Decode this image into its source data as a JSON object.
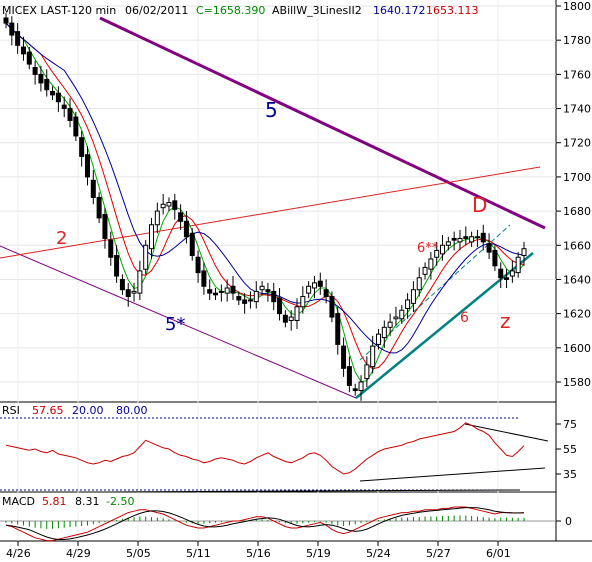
{
  "header": {
    "symbol": "MICEX LAST-120 min",
    "date": "06/02/2011",
    "close": "C=1658.390",
    "indicator": "ABillW_3LinesII2",
    "v1": "1640.172",
    "v2": "1653.113"
  },
  "rsi_header": {
    "name": "RSI",
    "value": "57.65",
    "low": "20.00",
    "high": "80.00"
  },
  "macd_header": {
    "name": "MACD",
    "v1": "5.81",
    "v2": "8.31",
    "v3": "-2.50"
  },
  "annotations": {
    "wave5": "5",
    "wave5star": "5*",
    "wave2": "2",
    "pointD": "D",
    "wave6dbl": "6**",
    "wave6": "6",
    "pointZ": "z"
  },
  "chart_data": {
    "type": "candlestick",
    "price_axis": {
      "ticks": [
        1580,
        1600,
        1620,
        1640,
        1660,
        1680,
        1700,
        1720,
        1740,
        1760,
        1780,
        1800
      ],
      "ylim": [
        1562,
        1805
      ]
    },
    "rsi_axis": {
      "ticks": [
        35,
        55,
        75
      ]
    },
    "macd_axis": {
      "ticks": [
        0
      ]
    },
    "x_labels": [
      "4/26",
      "4/29",
      "5/05",
      "5/11",
      "5/16",
      "5/19",
      "5/24",
      "5/27",
      "6/01"
    ],
    "close_series": [
      1790,
      1783,
      1777,
      1772,
      1766,
      1760,
      1755,
      1751,
      1748,
      1744,
      1740,
      1733,
      1724,
      1712,
      1700,
      1688,
      1676,
      1664,
      1653,
      1642,
      1634,
      1630,
      1633,
      1645,
      1660,
      1672,
      1680,
      1684,
      1685,
      1681,
      1674,
      1665,
      1654,
      1644,
      1636,
      1632,
      1631,
      1633,
      1635,
      1632,
      1628,
      1626,
      1628,
      1633,
      1636,
      1633,
      1627,
      1620,
      1615,
      1618,
      1624,
      1630,
      1636,
      1638,
      1636,
      1630,
      1618,
      1602,
      1588,
      1578,
      1575,
      1580,
      1590,
      1601,
      1608,
      1612,
      1615,
      1618,
      1622,
      1628,
      1634,
      1641,
      1647,
      1652,
      1657,
      1660,
      1662,
      1663,
      1664,
      1664,
      1665,
      1665,
      1662,
      1656,
      1648,
      1641,
      1640,
      1645,
      1653,
      1658
    ],
    "rsi_series": [
      58,
      57,
      56,
      55,
      54,
      55,
      53,
      52,
      54,
      51,
      50,
      49,
      48,
      46,
      44,
      43,
      44,
      46,
      45,
      47,
      49,
      50,
      52,
      57,
      62,
      60,
      58,
      56,
      55,
      52,
      50,
      49,
      47,
      46,
      44,
      45,
      47,
      48,
      47,
      46,
      44,
      43,
      45,
      48,
      50,
      52,
      49,
      47,
      45,
      44,
      46,
      48,
      51,
      52,
      50,
      46,
      41,
      38,
      35,
      36,
      39,
      43,
      47,
      50,
      53,
      55,
      56,
      57,
      58,
      60,
      61,
      63,
      64,
      65,
      66,
      67,
      68,
      69,
      72,
      76,
      74,
      71,
      69,
      66,
      60,
      55,
      50,
      49,
      53,
      57.65
    ],
    "macd_series": [
      -3,
      -4,
      -6,
      -8,
      -10,
      -12,
      -13,
      -14,
      -14,
      -13,
      -12,
      -11,
      -10,
      -9,
      -8,
      -6,
      -4,
      -2,
      0,
      2,
      4,
      6,
      7,
      8,
      8,
      7,
      6,
      5,
      3,
      1,
      -1,
      -3,
      -4,
      -5,
      -5,
      -4,
      -3,
      -2,
      -1,
      0,
      0,
      1,
      2,
      3,
      3,
      2,
      0,
      -2,
      -4,
      -5,
      -5,
      -4,
      -3,
      -2,
      -1,
      -3,
      -6,
      -8,
      -9,
      -8,
      -6,
      -4,
      -2,
      0,
      2,
      3,
      4,
      5,
      6,
      6,
      7,
      7,
      8,
      8,
      8,
      9,
      9,
      10,
      10,
      10,
      9,
      8,
      7,
      6,
      5,
      6,
      6,
      5.81,
      5.81,
      5.81
    ]
  },
  "colors": {
    "candle": "#000000",
    "green_ma": "#00aa00",
    "red_ma": "#dd0000",
    "blue_ma": "#000099",
    "trend_purple": "#800080",
    "trend_red": "#dd2222",
    "trend_teal": "#008080",
    "rsi_line": "#cc0000"
  }
}
